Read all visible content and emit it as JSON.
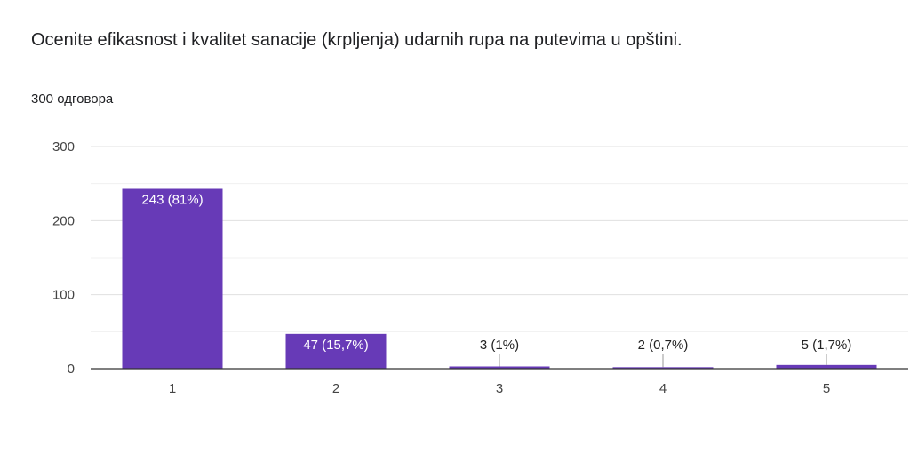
{
  "question": {
    "title": "Ocenite efikasnost i kvalitet sanacije (krpljenja) udarnih rupa na putevima u opštini.",
    "responses": "300 одговора"
  },
  "colors": {
    "bar": "#673ab7",
    "grid": "#e0e0e0",
    "axis": "#333333",
    "label_inside": "#ffffff",
    "label_outside": "#222222",
    "tick": "#444444"
  },
  "chart_data": {
    "type": "bar",
    "title": "",
    "xlabel": "",
    "ylabel": "",
    "categories": [
      "1",
      "2",
      "3",
      "4",
      "5"
    ],
    "values": [
      243,
      47,
      3,
      2,
      5
    ],
    "data_labels": [
      "243 (81%)",
      "47 (15,7%)",
      "3 (1%)",
      "2 (0,7%)",
      "5 (1,7%)"
    ],
    "ylim": [
      0,
      300
    ],
    "yticks": [
      0,
      100,
      200,
      300
    ],
    "grid": true,
    "legend": "none"
  }
}
